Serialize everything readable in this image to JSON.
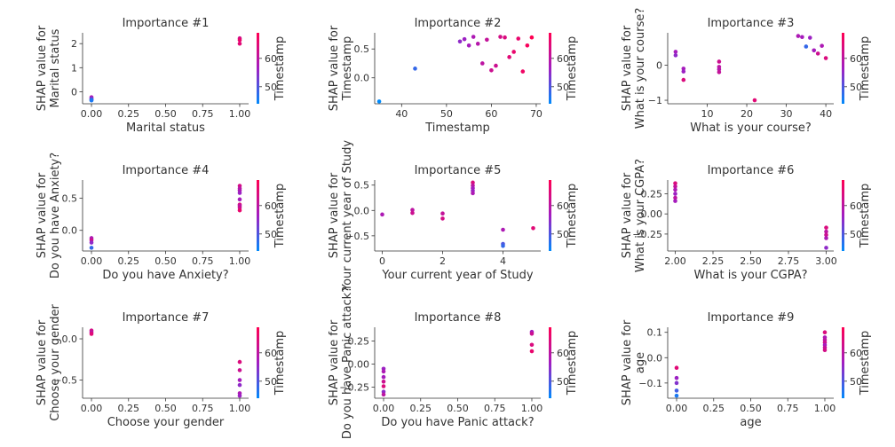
{
  "colors": {
    "low": "#1e88e5",
    "high": "#ff0d57"
  },
  "colorbar": {
    "label": "Timestamp",
    "min": 44,
    "max": 69,
    "ticks": [
      50,
      60
    ]
  },
  "chart_data": [
    {
      "type": "scatter",
      "title": "Importance #1",
      "xlabel": "Marital status",
      "ylabel": [
        "SHAP value for",
        "Marital status"
      ],
      "xlim": [
        -0.06,
        1.06
      ],
      "ylim": [
        -0.5,
        2.45
      ],
      "xticks": [
        0,
        0.25,
        0.5,
        0.75,
        1
      ],
      "xtick_labels": [
        "0.00",
        "0.25",
        "0.50",
        "0.75",
        "1.00"
      ],
      "yticks": [
        0,
        1,
        2
      ],
      "ytick_labels": [
        "0",
        "1",
        "2"
      ],
      "points": [
        [
          0,
          -0.23,
          58
        ],
        [
          0,
          -0.28,
          55
        ],
        [
          0,
          -0.31,
          52
        ],
        [
          0,
          -0.34,
          49
        ],
        [
          0,
          -0.36,
          46
        ],
        [
          1,
          2.22,
          63
        ],
        [
          1,
          2.15,
          66
        ],
        [
          1,
          2.0,
          65
        ]
      ]
    },
    {
      "type": "scatter",
      "title": "Importance #2",
      "xlabel": "Timestamp",
      "ylabel": [
        "SHAP value for",
        "Timestamp"
      ],
      "xlim": [
        34,
        71
      ],
      "ylim": [
        -0.45,
        0.78
      ],
      "xticks": [
        40,
        50,
        60,
        70
      ],
      "xtick_labels": [
        "40",
        "50",
        "60",
        "70"
      ],
      "yticks": [
        0,
        0.5
      ],
      "ytick_labels": [
        "0.0",
        "0.5"
      ],
      "points": [
        [
          35,
          -0.41,
          44
        ],
        [
          43,
          0.16,
          48
        ],
        [
          53,
          0.63,
          55
        ],
        [
          54,
          0.67,
          56
        ],
        [
          55,
          0.56,
          57
        ],
        [
          56,
          0.71,
          58
        ],
        [
          57,
          0.59,
          59
        ],
        [
          58,
          0.25,
          60
        ],
        [
          59,
          0.66,
          61
        ],
        [
          60,
          0.13,
          62
        ],
        [
          61,
          0.21,
          62
        ],
        [
          62,
          0.71,
          63
        ],
        [
          63,
          0.7,
          64
        ],
        [
          64,
          0.36,
          65
        ],
        [
          65,
          0.45,
          66
        ],
        [
          66,
          0.68,
          66
        ],
        [
          67,
          0.11,
          67
        ],
        [
          68,
          0.56,
          68
        ],
        [
          69,
          0.7,
          69
        ]
      ]
    },
    {
      "type": "scatter",
      "title": "Importance #3",
      "xlabel": "What is your course?",
      "ylabel": [
        "SHAP value for",
        "What is your course?"
      ],
      "xlim": [
        0,
        42
      ],
      "ylim": [
        -1.1,
        0.92
      ],
      "xticks": [
        10,
        20,
        30,
        40
      ],
      "xtick_labels": [
        "10",
        "20",
        "30",
        "40"
      ],
      "yticks": [
        -1,
        0
      ],
      "ytick_labels": [
        "−1",
        "0"
      ],
      "points": [
        [
          2,
          0.38,
          57
        ],
        [
          2,
          0.28,
          55
        ],
        [
          4,
          -0.1,
          57
        ],
        [
          4,
          -0.18,
          56
        ],
        [
          4,
          -0.42,
          64
        ],
        [
          13,
          0.1,
          62
        ],
        [
          13,
          -0.05,
          60
        ],
        [
          13,
          -0.12,
          59
        ],
        [
          13,
          -0.2,
          61
        ],
        [
          22,
          -1.0,
          65
        ],
        [
          33,
          0.83,
          58
        ],
        [
          34,
          0.8,
          57
        ],
        [
          35,
          0.53,
          48
        ],
        [
          36,
          0.78,
          56
        ],
        [
          37,
          0.42,
          57
        ],
        [
          38,
          0.33,
          62
        ],
        [
          39,
          0.55,
          58
        ],
        [
          40,
          0.2,
          64
        ]
      ]
    },
    {
      "type": "scatter",
      "title": "Importance #4",
      "xlabel": "Do you have Anxiety?",
      "ylabel": [
        "SHAP value for",
        "Do you have Anxiety?"
      ],
      "xlim": [
        -0.06,
        1.06
      ],
      "ylim": [
        -0.32,
        0.78
      ],
      "xticks": [
        0,
        0.25,
        0.5,
        0.75,
        1
      ],
      "xtick_labels": [
        "0.00",
        "0.25",
        "0.50",
        "0.75",
        "1.00"
      ],
      "yticks": [
        0,
        0.5
      ],
      "ytick_labels": [
        "0.0",
        "0.5"
      ],
      "points": [
        [
          0,
          -0.12,
          58
        ],
        [
          0,
          -0.15,
          62
        ],
        [
          0,
          -0.19,
          55
        ],
        [
          0,
          -0.27,
          48
        ],
        [
          1,
          0.69,
          63
        ],
        [
          1,
          0.65,
          60
        ],
        [
          1,
          0.62,
          58
        ],
        [
          1,
          0.58,
          56
        ],
        [
          1,
          0.48,
          57
        ],
        [
          1,
          0.4,
          64
        ],
        [
          1,
          0.38,
          60
        ],
        [
          1,
          0.35,
          62
        ],
        [
          1,
          0.31,
          66
        ]
      ]
    },
    {
      "type": "scatter",
      "title": "Importance #5",
      "xlabel": "Your current year of Study",
      "ylabel": [
        "SHAP value for",
        "Your current year of Study"
      ],
      "xlim": [
        -0.25,
        5.25
      ],
      "ylim": [
        -0.8,
        0.6
      ],
      "xticks": [
        0,
        2,
        4
      ],
      "xtick_labels": [
        "0",
        "2",
        "4"
      ],
      "yticks": [
        -0.5,
        0,
        0.5
      ],
      "ytick_labels": [
        "−0.5",
        "0.0",
        "0.5"
      ],
      "points": [
        [
          0,
          -0.08,
          58
        ],
        [
          1,
          0.01,
          60
        ],
        [
          1,
          -0.05,
          62
        ],
        [
          2,
          -0.06,
          61
        ],
        [
          2,
          -0.16,
          63
        ],
        [
          3,
          0.55,
          64
        ],
        [
          3,
          0.49,
          60
        ],
        [
          3,
          0.44,
          57
        ],
        [
          3,
          0.39,
          56
        ],
        [
          3,
          0.34,
          58
        ],
        [
          4,
          -0.38,
          58
        ],
        [
          4,
          -0.66,
          50
        ],
        [
          4,
          -0.7,
          48
        ],
        [
          5,
          -0.35,
          65
        ]
      ]
    },
    {
      "type": "scatter",
      "title": "Importance #6",
      "xlabel": "What is your CGPA?",
      "ylabel": [
        "SHAP value for",
        "What is your CGPA?"
      ],
      "xlim": [
        1.95,
        3.05
      ],
      "ylim": [
        -0.46,
        0.42
      ],
      "xticks": [
        2,
        2.25,
        2.5,
        2.75,
        3
      ],
      "xtick_labels": [
        "2.00",
        "2.25",
        "2.50",
        "2.75",
        "3.00"
      ],
      "yticks": [
        -0.25,
        0,
        0.25
      ],
      "ytick_labels": [
        "−0.25",
        "0.00",
        "0.25"
      ],
      "points": [
        [
          2,
          0.38,
          64
        ],
        [
          2,
          0.34,
          61
        ],
        [
          2,
          0.3,
          58
        ],
        [
          2,
          0.25,
          56
        ],
        [
          2,
          0.2,
          60
        ],
        [
          2,
          0.16,
          57
        ],
        [
          3,
          -0.17,
          64
        ],
        [
          3,
          -0.22,
          60
        ],
        [
          3,
          -0.26,
          62
        ],
        [
          3,
          -0.3,
          58
        ],
        [
          3,
          -0.42,
          55
        ]
      ]
    },
    {
      "type": "scatter",
      "title": "Importance #7",
      "xlabel": "Choose your gender",
      "ylabel": [
        "SHAP value for",
        "Choose your gender"
      ],
      "xlim": [
        -0.06,
        1.06
      ],
      "ylim": [
        -0.72,
        0.14
      ],
      "xticks": [
        0,
        0.25,
        0.5,
        0.75,
        1
      ],
      "xtick_labels": [
        "0.00",
        "0.25",
        "0.50",
        "0.75",
        "1.00"
      ],
      "yticks": [
        -0.5,
        0
      ],
      "ytick_labels": [
        "−0.5",
        "0.0"
      ],
      "points": [
        [
          0,
          0.1,
          63
        ],
        [
          0,
          0.08,
          60
        ],
        [
          0,
          0.06,
          65
        ],
        [
          1,
          -0.28,
          64
        ],
        [
          1,
          -0.38,
          62
        ],
        [
          1,
          -0.5,
          57
        ],
        [
          1,
          -0.56,
          55
        ],
        [
          1,
          -0.66,
          58
        ],
        [
          1,
          -0.69,
          56
        ]
      ]
    },
    {
      "type": "scatter",
      "title": "Importance #8",
      "xlabel": "Do you have Panic attack?",
      "ylabel": [
        "SHAP value for",
        "Do you have Panic attack?"
      ],
      "xlim": [
        -0.06,
        1.06
      ],
      "ylim": [
        -0.37,
        0.4
      ],
      "xticks": [
        0,
        0.25,
        0.5,
        0.75,
        1
      ],
      "xtick_labels": [
        "0.00",
        "0.25",
        "0.50",
        "0.75",
        "1.00"
      ],
      "yticks": [
        -0.25,
        0,
        0.25
      ],
      "ytick_labels": [
        "−0.25",
        "0.00",
        "0.25"
      ],
      "points": [
        [
          0,
          -0.05,
          56
        ],
        [
          0,
          -0.08,
          58
        ],
        [
          0,
          -0.14,
          57
        ],
        [
          0,
          -0.19,
          62
        ],
        [
          0,
          -0.24,
          64
        ],
        [
          0,
          -0.3,
          55
        ],
        [
          0,
          -0.33,
          60
        ],
        [
          1,
          0.35,
          57
        ],
        [
          1,
          0.33,
          62
        ],
        [
          1,
          0.21,
          64
        ],
        [
          1,
          0.14,
          66
        ]
      ]
    },
    {
      "type": "scatter",
      "title": "Importance #9",
      "xlabel": "age",
      "ylabel": [
        "SHAP value for",
        "age"
      ],
      "xlim": [
        -0.06,
        1.06
      ],
      "ylim": [
        -0.16,
        0.12
      ],
      "xticks": [
        0,
        0.25,
        0.5,
        0.75,
        1
      ],
      "xtick_labels": [
        "0.00",
        "0.25",
        "0.50",
        "0.75",
        "1.00"
      ],
      "yticks": [
        -0.1,
        0,
        0.1
      ],
      "ytick_labels": [
        "−0.1",
        "0.0",
        "0.1"
      ],
      "points": [
        [
          0,
          -0.04,
          65
        ],
        [
          0,
          -0.08,
          56
        ],
        [
          0,
          -0.1,
          54
        ],
        [
          0,
          -0.13,
          49
        ],
        [
          0,
          -0.15,
          46
        ],
        [
          1,
          0.1,
          64
        ],
        [
          1,
          0.08,
          58
        ],
        [
          1,
          0.07,
          60
        ],
        [
          1,
          0.06,
          62
        ],
        [
          1,
          0.05,
          57
        ],
        [
          1,
          0.04,
          61
        ],
        [
          1,
          0.03,
          63
        ]
      ]
    }
  ]
}
